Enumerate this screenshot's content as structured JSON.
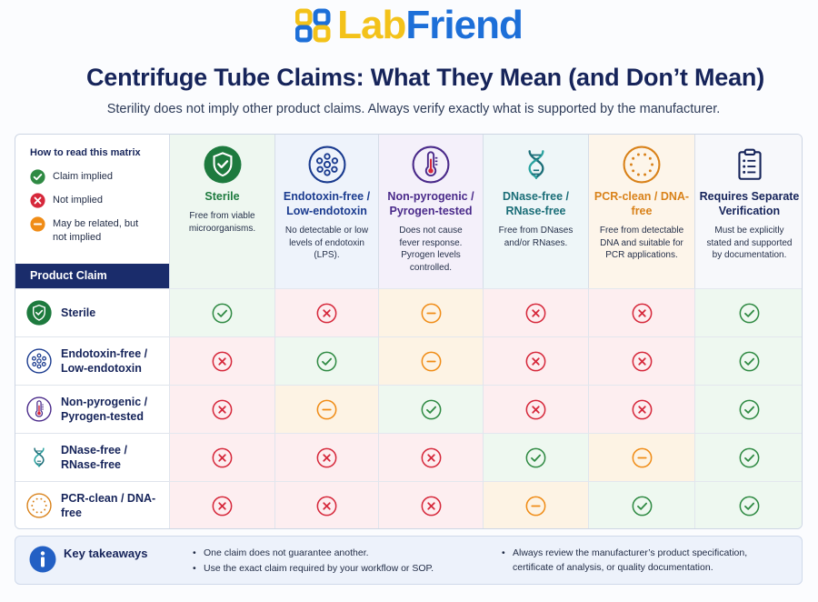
{
  "brand": {
    "part1": "Lab",
    "part2": "Friend"
  },
  "header": {
    "title": "Centrifuge Tube Claims: What They Mean (and Don’t Mean)",
    "subtitle": "Sterility does not imply other product claims. Always verify exactly what is supported by the manufacturer."
  },
  "legend": {
    "heading": "How to read this matrix",
    "items": [
      {
        "status": "implied",
        "label": "Claim implied"
      },
      {
        "status": "not",
        "label": "Not implied"
      },
      {
        "status": "maybe",
        "label": "May be related, but not implied"
      }
    ]
  },
  "product_claim_header": "Product Claim",
  "columns": [
    {
      "icon": "shield-check-icon",
      "title": "Sterile",
      "desc": "Free from viable microorganisms.",
      "color": "#1d7a3e",
      "tint": "#eef7f0"
    },
    {
      "icon": "molecule-cluster-icon",
      "title": "Endotoxin-free / Low-endotoxin",
      "desc": "No detectable or low levels of endotoxin (LPS).",
      "color": "#1a3b8f",
      "tint": "#eef3fb"
    },
    {
      "icon": "thermometer-icon",
      "title": "Non-pyrogenic / Pyrogen-tested",
      "desc": "Does not cause fever response. Pyrogen levels controlled.",
      "color": "#4a2a8a",
      "tint": "#f4f0fa"
    },
    {
      "icon": "dna-helix-icon",
      "title": "DNase-free / RNase-free",
      "desc": "Free from DNases and/or RNases.",
      "color": "#1b6e78",
      "tint": "#eef6f8"
    },
    {
      "icon": "dotted-circle-icon",
      "title": "PCR-clean / DNA-free",
      "desc": "Free from detectable DNA and suitable for PCR applications.",
      "color": "#d9821a",
      "tint": "#fdf5ea"
    },
    {
      "icon": "clipboard-list-icon",
      "title": "Requires Separate Verification",
      "desc": "Must be explicitly stated and supported by documentation.",
      "color": "#16245a",
      "tint": "#f7f8fb"
    }
  ],
  "rows": [
    {
      "icon": "shield-check-icon",
      "label": "Sterile",
      "color": "#1d7a3e",
      "cells": [
        "implied",
        "not",
        "maybe",
        "not",
        "not",
        "implied"
      ]
    },
    {
      "icon": "molecule-cluster-icon",
      "label": "Endotoxin-free / Low-endotoxin",
      "color": "#1a3b8f",
      "cells": [
        "not",
        "implied",
        "maybe",
        "not",
        "not",
        "implied"
      ]
    },
    {
      "icon": "thermometer-icon",
      "label": "Non-pyrogenic / Pyrogen-tested",
      "color": "#4a2a8a",
      "cells": [
        "not",
        "maybe",
        "implied",
        "not",
        "not",
        "implied"
      ]
    },
    {
      "icon": "dna-helix-icon",
      "label": "DNase-free / RNase-free",
      "color": "#1b6e78",
      "cells": [
        "not",
        "not",
        "not",
        "implied",
        "maybe",
        "implied"
      ]
    },
    {
      "icon": "dotted-circle-icon",
      "label": "PCR-clean / DNA-free",
      "color": "#d9821a",
      "cells": [
        "not",
        "not",
        "not",
        "maybe",
        "implied",
        "implied"
      ]
    }
  ],
  "status_colors": {
    "implied": "#2f8a43",
    "not": "#d6283b",
    "maybe": "#f08c16",
    "implied_bg": "#eef8f0",
    "not_bg": "#fdeef0",
    "maybe_bg": "#fdf3e4"
  },
  "takeaways": {
    "title": "Key takeaways",
    "col1": [
      "One claim does not guarantee another.",
      "Use the exact claim required by your workflow or SOP."
    ],
    "col2": [
      "Always review the manufacturer’s product specification, certificate of analysis, or quality documentation."
    ]
  }
}
